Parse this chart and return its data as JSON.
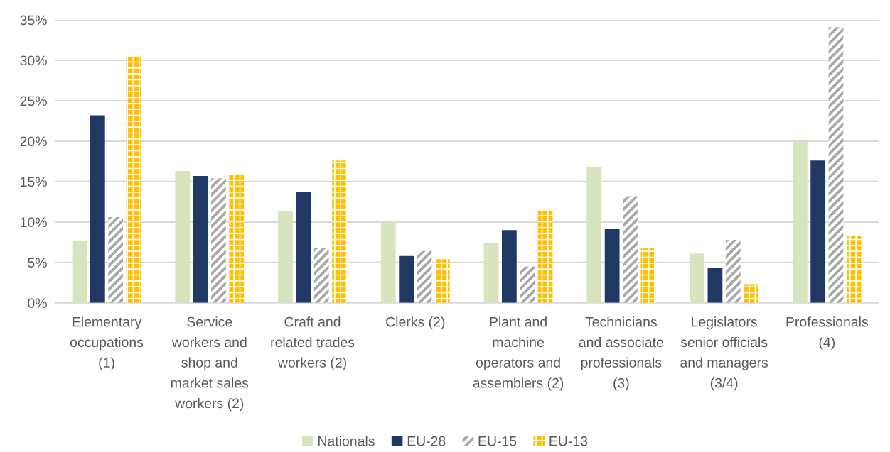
{
  "chart_data": {
    "type": "bar",
    "categories": [
      "Elementary\noccupations\n(1)",
      "Service\nworkers and\nshop and\nmarket sales\nworkers (2)",
      "Craft and\nrelated trades\nworkers (2)",
      "Clerks (2)",
      "Plant and\nmachine\noperators and\nassemblers (2)",
      "Technicians\nand associate\nprofessionals\n(3)",
      "Legislators\nsenior officials\nand managers\n(3/4)",
      "Professionals\n(4)"
    ],
    "series": [
      {
        "name": "Nationals",
        "color": "#d7e4bd",
        "values": [
          7.7,
          16.3,
          11.4,
          10.0,
          7.4,
          16.8,
          6.1,
          19.9
        ]
      },
      {
        "name": "EU-28",
        "color": "#1f3864",
        "values": [
          23.2,
          15.7,
          13.7,
          5.8,
          9.0,
          9.1,
          4.3,
          17.6
        ]
      },
      {
        "name": "EU-15",
        "color": "#a6a6a6",
        "values": [
          10.6,
          15.4,
          6.8,
          6.4,
          4.5,
          13.2,
          7.8,
          34.1
        ]
      },
      {
        "name": "EU-13",
        "color": "#ffc000",
        "values": [
          30.4,
          15.9,
          17.6,
          5.4,
          11.5,
          6.8,
          2.3,
          8.3
        ]
      }
    ],
    "ylim": [
      0,
      35
    ],
    "yticks": [
      {
        "value": 0,
        "label": "0%"
      },
      {
        "value": 5,
        "label": "5%"
      },
      {
        "value": 10,
        "label": "10%"
      },
      {
        "value": 15,
        "label": "15%"
      },
      {
        "value": 20,
        "label": "20%"
      },
      {
        "value": 25,
        "label": "25%"
      },
      {
        "value": 30,
        "label": "30%"
      },
      {
        "value": 35,
        "label": "35%"
      }
    ],
    "grid": "y",
    "legend": "bottom"
  }
}
